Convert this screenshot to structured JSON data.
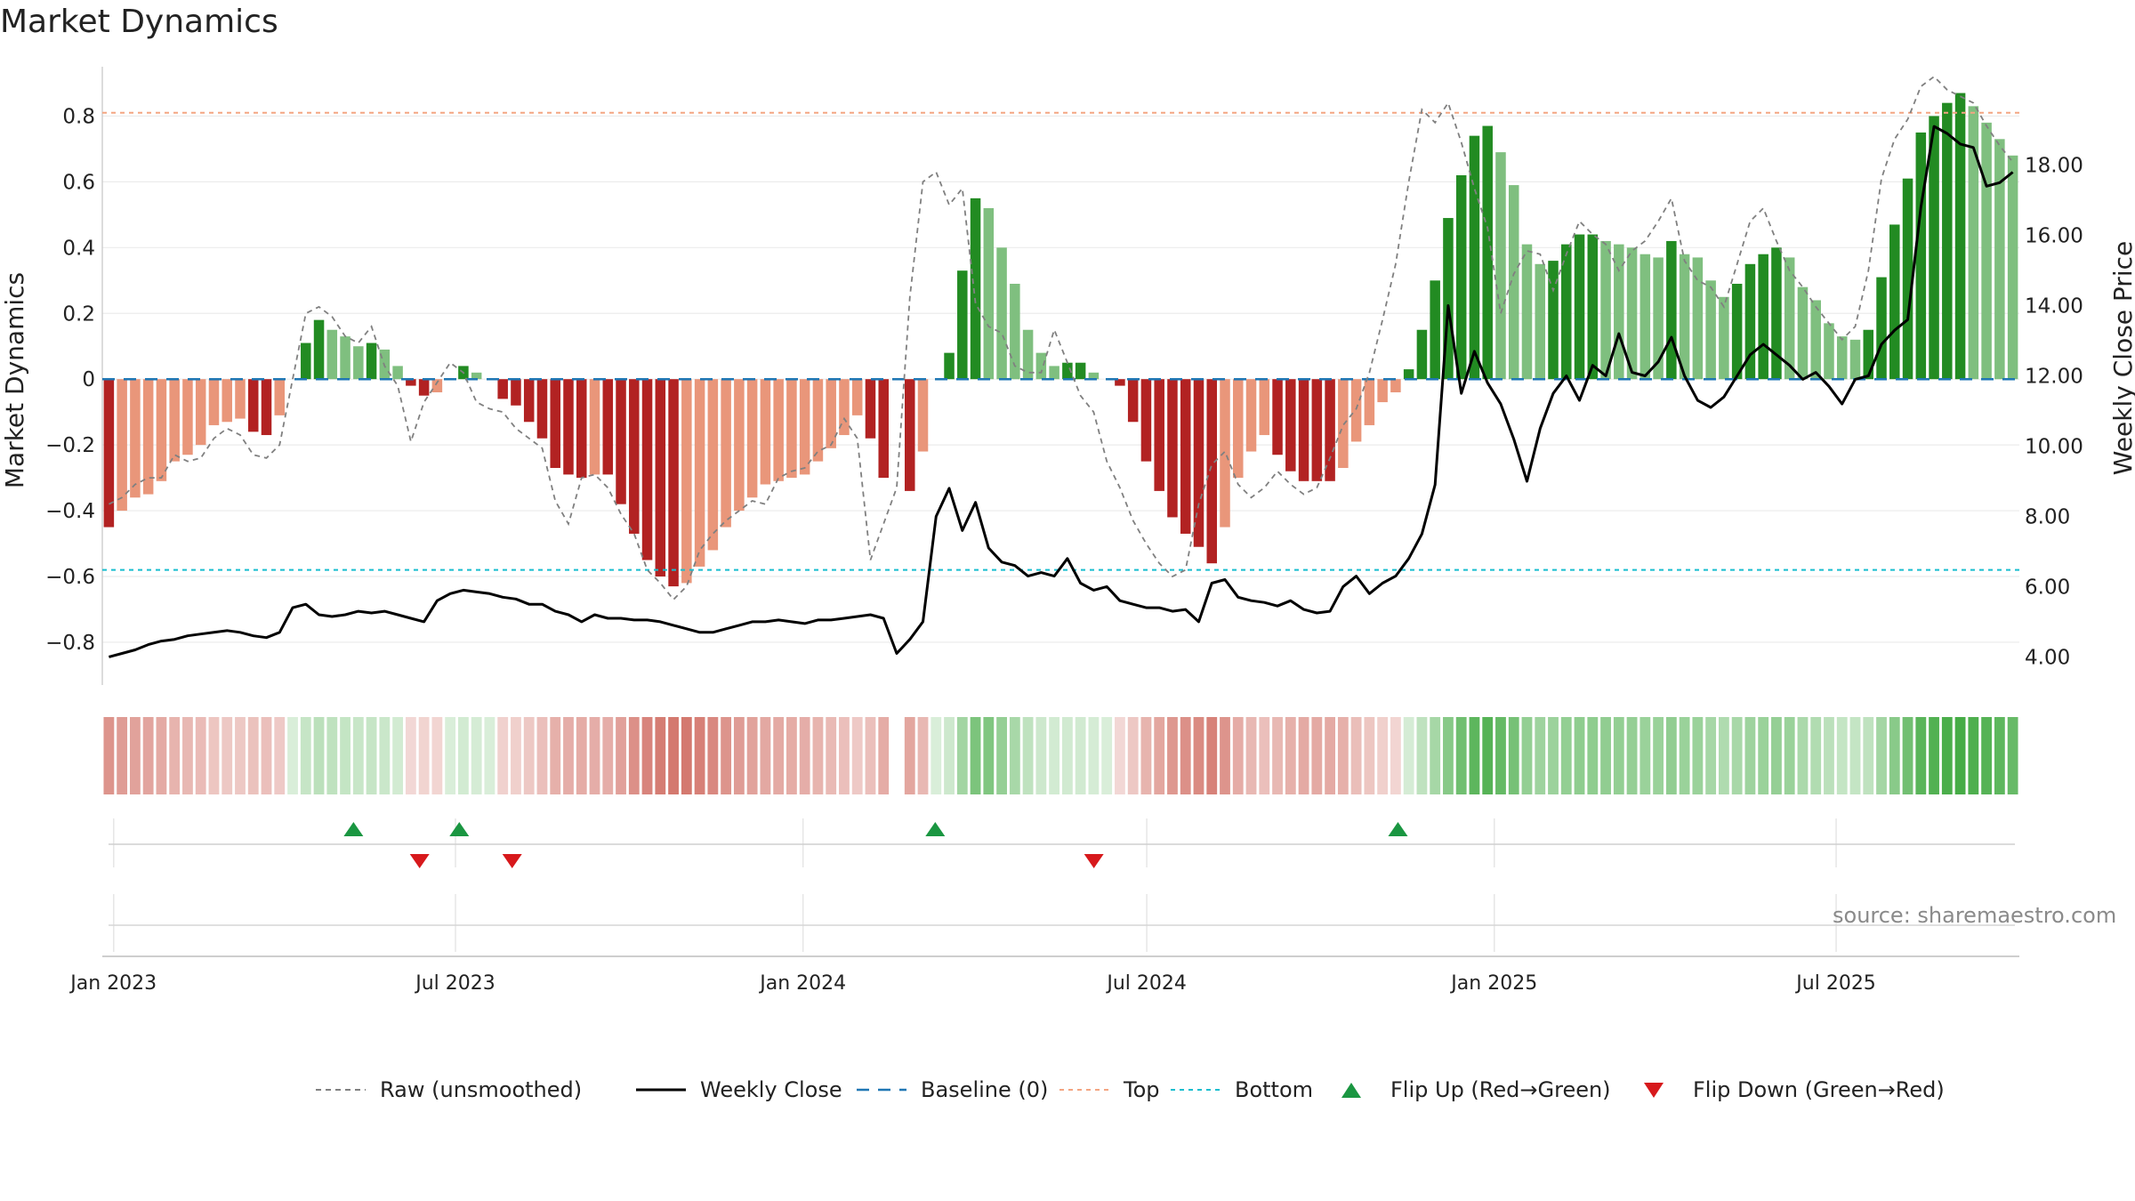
{
  "title": "Market Dynamics",
  "source": "source: sharemaestro.com",
  "chart_data": {
    "type": "bar",
    "y_left_label": "Market Dynamics",
    "y_right_label": "Weekly Close Price",
    "y_left_lim": [
      -0.93,
      0.95
    ],
    "y_right_lim": [
      3.2,
      20.8
    ],
    "y_left_ticks": [
      "0.8",
      "0.6",
      "0.4",
      "0.2",
      "0",
      "−0.2",
      "−0.4",
      "−0.6",
      "−0.8"
    ],
    "y_left_tick_values": [
      0.8,
      0.6,
      0.4,
      0.2,
      0,
      -0.2,
      -0.4,
      -0.6,
      -0.8
    ],
    "y_right_ticks": [
      "18.00",
      "16.00",
      "14.00",
      "12.00",
      "10.00",
      "8.00",
      "6.00",
      "4.00"
    ],
    "y_right_tick_values": [
      18,
      16,
      14,
      12,
      10,
      8,
      6,
      4
    ],
    "x_ticks": [
      "Jan 2023",
      "Jul 2023",
      "Jan 2024",
      "Jul 2024",
      "Jan 2025",
      "Jul 2025"
    ],
    "x_tick_dates": [
      "2023-01-01",
      "2023-07-01",
      "2024-01-01",
      "2024-07-01",
      "2025-01-01",
      "2025-07-01"
    ],
    "x_start": "2022-12-26",
    "x_end": "2025-10-06",
    "top_level": 0.81,
    "bottom_level": -0.58,
    "baseline": 0,
    "colors": {
      "dark_red": "#b22222",
      "light_red": "#e9967a",
      "dark_green": "#228b22",
      "light_green": "#7fbf7f",
      "raw": "#808080",
      "close": "#000000",
      "baseline": "#1f77b4",
      "top": "#f4a582",
      "bottom": "#17becf",
      "flip_up": "#1a9641",
      "flip_down": "#d7191c",
      "strip_green": "#2ca02c",
      "strip_red": "#c0392b"
    },
    "series": [
      {
        "name": "Market Dynamics",
        "kind": "bar",
        "values": [
          -0.45,
          -0.4,
          -0.36,
          -0.35,
          -0.31,
          -0.25,
          -0.23,
          -0.2,
          -0.14,
          -0.13,
          -0.12,
          -0.16,
          -0.17,
          -0.11,
          0,
          0.11,
          0.18,
          0.15,
          0.13,
          0.1,
          0.11,
          0.09,
          0.04,
          -0.02,
          -0.05,
          -0.04,
          0,
          0.04,
          0.02,
          0,
          -0.06,
          -0.08,
          -0.13,
          -0.18,
          -0.27,
          -0.29,
          -0.3,
          -0.29,
          -0.29,
          -0.38,
          -0.47,
          -0.55,
          -0.6,
          -0.63,
          -0.62,
          -0.57,
          -0.52,
          -0.45,
          -0.4,
          -0.36,
          -0.32,
          -0.31,
          -0.3,
          -0.29,
          -0.25,
          -0.21,
          -0.17,
          -0.11,
          -0.18,
          -0.3,
          null,
          -0.34,
          -0.22,
          0,
          0.08,
          0.33,
          0.55,
          0.52,
          0.4,
          0.29,
          0.15,
          0.08,
          0.04,
          0.05,
          0.05,
          0.02,
          0,
          -0.02,
          -0.13,
          -0.25,
          -0.34,
          -0.42,
          -0.47,
          -0.51,
          -0.56,
          -0.45,
          -0.3,
          -0.22,
          -0.17,
          -0.23,
          -0.28,
          -0.31,
          -0.31,
          -0.31,
          -0.27,
          -0.19,
          -0.14,
          -0.07,
          -0.04,
          0.03,
          0.15,
          0.3,
          0.49,
          0.62,
          0.74,
          0.77,
          0.69,
          0.59,
          0.41,
          0.35,
          0.36,
          0.41,
          0.44,
          0.44,
          0.42,
          0.41,
          0.4,
          0.38,
          0.37,
          0.42,
          0.38,
          0.37,
          0.3,
          0.25,
          0.29,
          0.35,
          0.38,
          0.4,
          0.37,
          0.28,
          0.24,
          0.17,
          0.13,
          0.12,
          0.15,
          0.31,
          0.47,
          0.61,
          0.75,
          0.8,
          0.84,
          0.87,
          0.83,
          0.78,
          0.73,
          0.68
        ]
      },
      {
        "name": "Raw (unsmoothed)",
        "kind": "line",
        "values": [
          -0.38,
          -0.36,
          -0.32,
          -0.3,
          -0.3,
          -0.23,
          -0.25,
          -0.24,
          -0.18,
          -0.15,
          -0.17,
          -0.23,
          -0.24,
          -0.2,
          0,
          0.2,
          0.22,
          0.19,
          0.13,
          0.11,
          0.16,
          0.04,
          -0.02,
          -0.19,
          -0.07,
          -0.01,
          0.05,
          0.02,
          -0.07,
          -0.09,
          -0.1,
          -0.15,
          -0.18,
          -0.21,
          -0.37,
          -0.44,
          -0.3,
          -0.29,
          -0.33,
          -0.41,
          -0.47,
          -0.58,
          -0.62,
          -0.67,
          -0.63,
          -0.52,
          -0.47,
          -0.43,
          -0.4,
          -0.37,
          -0.38,
          -0.3,
          -0.28,
          -0.27,
          -0.22,
          -0.2,
          -0.12,
          -0.18,
          -0.55,
          -0.44,
          -0.33,
          0.25,
          0.6,
          0.63,
          0.53,
          0.58,
          0.23,
          0.16,
          0.14,
          0.04,
          0.02,
          0.02,
          0.15,
          0.05,
          -0.05,
          -0.1,
          -0.25,
          -0.33,
          -0.43,
          -0.5,
          -0.56,
          -0.6,
          -0.58,
          -0.38,
          -0.26,
          -0.22,
          -0.32,
          -0.36,
          -0.33,
          -0.28,
          -0.32,
          -0.35,
          -0.33,
          -0.24,
          -0.14,
          -0.09,
          0.02,
          0.18,
          0.35,
          0.6,
          0.82,
          0.78,
          0.84,
          0.72,
          0.58,
          0.46,
          0.2,
          0.32,
          0.39,
          0.38,
          0.27,
          0.38,
          0.48,
          0.44,
          0.41,
          0.33,
          0.39,
          0.42,
          0.48,
          0.55,
          0.36,
          0.3,
          0.28,
          0.22,
          0.35,
          0.48,
          0.52,
          0.42,
          0.33,
          0.28,
          0.22,
          0.17,
          0.12,
          0.16,
          0.33,
          0.61,
          0.73,
          0.79,
          0.89,
          0.92,
          0.88,
          0.86,
          0.84,
          0.77,
          0.71,
          0.66
        ]
      },
      {
        "name": "Weekly Close",
        "kind": "line",
        "axis": "right",
        "values": [
          4.0,
          4.1,
          4.2,
          4.35,
          4.45,
          4.5,
          4.6,
          4.65,
          4.7,
          4.75,
          4.7,
          4.6,
          4.55,
          4.7,
          5.4,
          5.5,
          5.2,
          5.15,
          5.2,
          5.3,
          5.25,
          5.3,
          5.2,
          5.1,
          5.0,
          5.6,
          5.8,
          5.9,
          5.85,
          5.8,
          5.7,
          5.65,
          5.5,
          5.5,
          5.3,
          5.2,
          5.0,
          5.2,
          5.1,
          5.1,
          5.05,
          5.05,
          5.0,
          4.9,
          4.8,
          4.7,
          4.7,
          4.8,
          4.9,
          5.0,
          5.0,
          5.05,
          5.0,
          4.95,
          5.05,
          5.05,
          5.1,
          5.15,
          5.2,
          5.1,
          4.1,
          4.5,
          5.0,
          8.0,
          8.8,
          7.6,
          8.4,
          7.1,
          6.7,
          6.6,
          6.3,
          6.4,
          6.3,
          6.8,
          6.1,
          5.9,
          6.0,
          5.6,
          5.5,
          5.4,
          5.4,
          5.3,
          5.35,
          5.0,
          6.1,
          6.2,
          5.7,
          5.6,
          5.55,
          5.45,
          5.6,
          5.35,
          5.25,
          5.3,
          6.0,
          6.3,
          5.8,
          6.1,
          6.3,
          6.8,
          7.5,
          8.9,
          14.0,
          11.5,
          12.7,
          11.8,
          11.2,
          10.2,
          9.0,
          10.5,
          11.5,
          12.0,
          11.3,
          12.3,
          12.0,
          13.2,
          12.1,
          12.0,
          12.4,
          13.1,
          12.0,
          11.3,
          11.1,
          11.4,
          12.0,
          12.6,
          12.9,
          12.6,
          12.3,
          11.9,
          12.1,
          11.7,
          11.2,
          11.9,
          12.0,
          12.9,
          13.3,
          13.6,
          16.8,
          19.1,
          18.9,
          18.6,
          18.5,
          17.4,
          17.5,
          17.8
        ]
      }
    ],
    "flip_up_dates": [
      "2023-05-08",
      "2023-07-03",
      "2024-03-11",
      "2024-11-11"
    ],
    "flip_down_dates": [
      "2023-06-12",
      "2023-07-31",
      "2024-06-03"
    ],
    "legend": {
      "position": "bottom-center",
      "items": [
        {
          "label": "Raw (unsmoothed)",
          "style": "dashed-gray"
        },
        {
          "label": "Weekly Close",
          "style": "solid-black"
        },
        {
          "label": "Baseline (0)",
          "style": "dashed-blue"
        },
        {
          "label": "Top",
          "style": "dotted-orange"
        },
        {
          "label": "Bottom",
          "style": "dotted-cyan"
        },
        {
          "label": "Flip Up (Red→Green)",
          "style": "triangle-up-green"
        },
        {
          "label": "Flip Down (Green→Red)",
          "style": "triangle-down-red"
        }
      ]
    }
  }
}
